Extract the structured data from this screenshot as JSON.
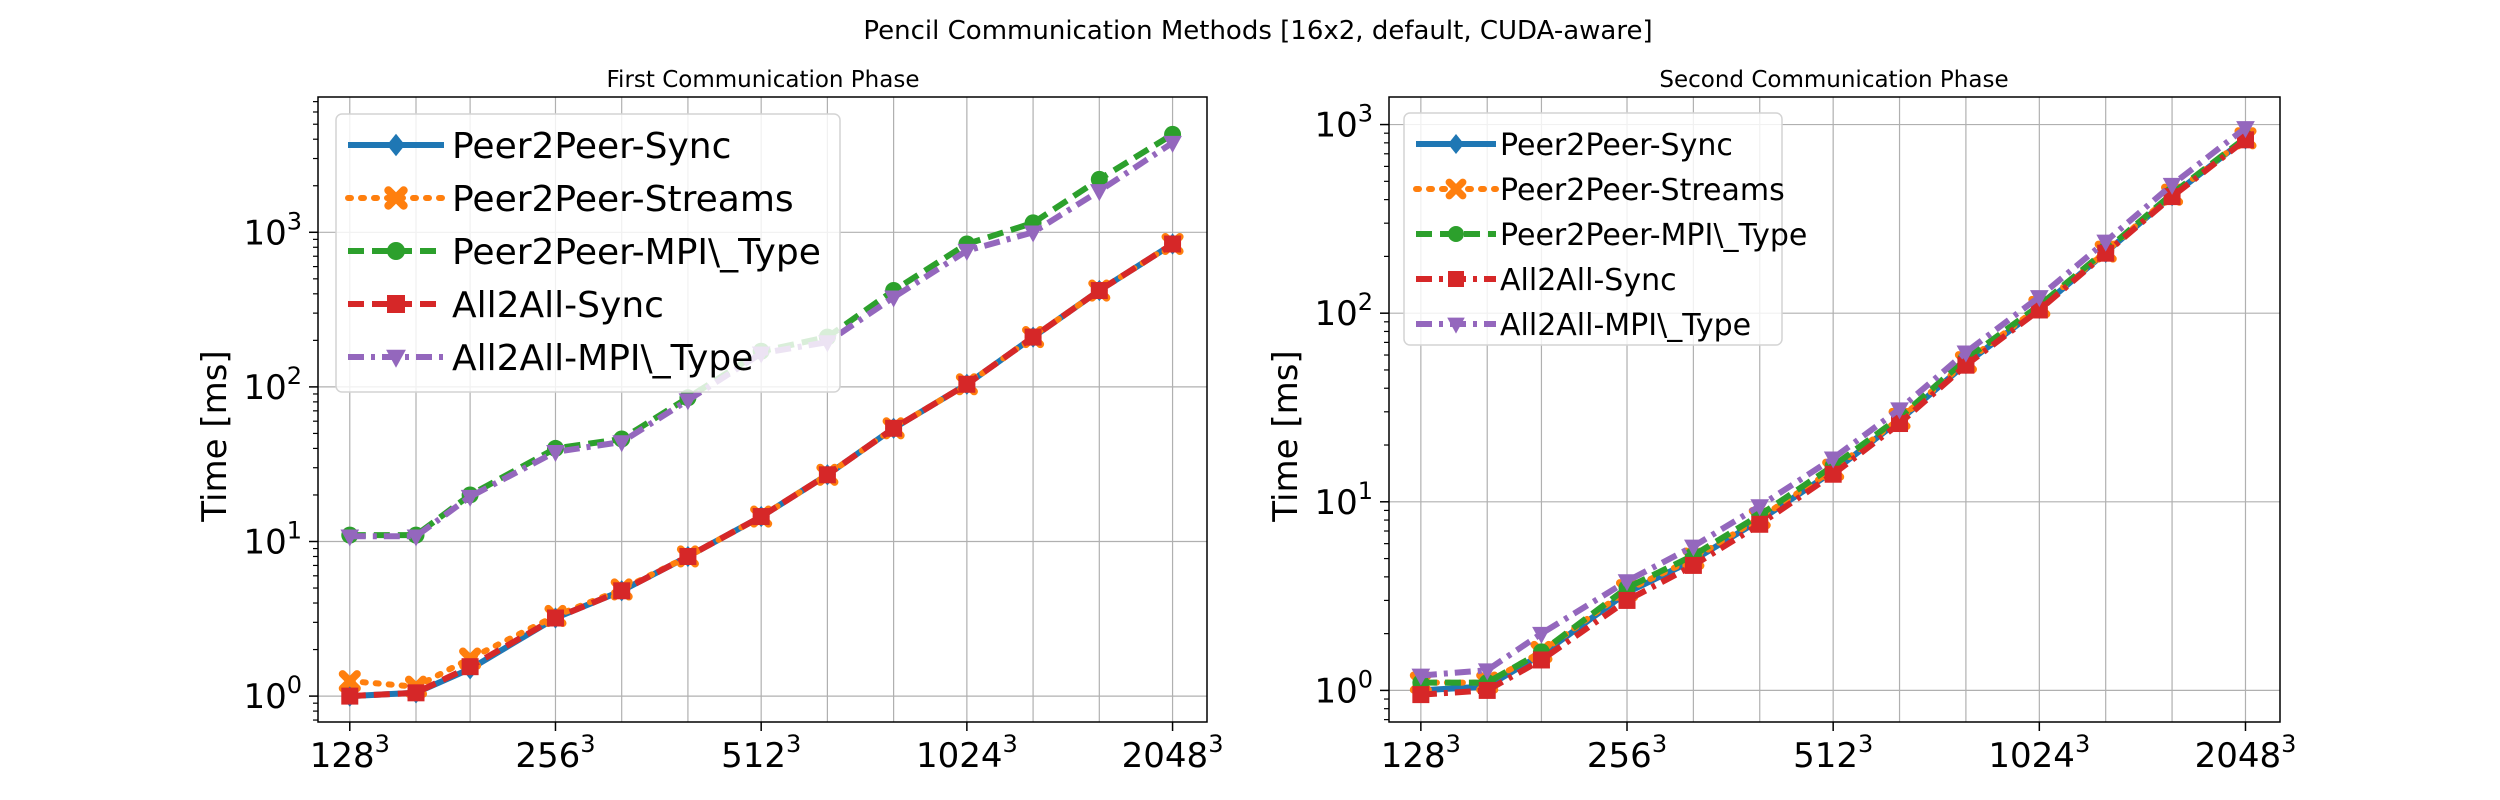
{
  "figure": {
    "title": "Pencil Communication Methods [16x2, default, CUDA-aware]"
  },
  "chart_data": [
    {
      "type": "line",
      "title": "First Communication Phase",
      "xlabel": "",
      "ylabel": "Time [ms]",
      "xscale": "log2",
      "yscale": "log",
      "xticks": [
        {
          "value": 128,
          "label": "128",
          "exp": "3"
        },
        {
          "value": 256,
          "label": "256",
          "exp": "3"
        },
        {
          "value": 512,
          "label": "512",
          "exp": "3"
        },
        {
          "value": 1024,
          "label": "1024",
          "exp": "3"
        },
        {
          "value": 2048,
          "label": "2048",
          "exp": "3"
        }
      ],
      "yticks": [
        {
          "value": 1,
          "label": "10",
          "exp": "0"
        },
        {
          "value": 10,
          "label": "10",
          "exp": "1"
        },
        {
          "value": 100,
          "label": "10",
          "exp": "2"
        },
        {
          "value": 1000,
          "label": "10",
          "exp": "3"
        }
      ],
      "xlim": [
        115,
        2300
      ],
      "ylim": [
        0.68,
        7500
      ],
      "grid": true,
      "legend_position": "top-left",
      "x": [
        128,
        160,
        192,
        256,
        320,
        400,
        512,
        640,
        800,
        1024,
        1280,
        1600,
        2048
      ],
      "series": [
        {
          "name": "Peer2Peer-Sync",
          "color": "#1f77b4",
          "marker": "diamond",
          "dash": "solid",
          "values": [
            1.0,
            1.05,
            1.5,
            3.2,
            4.8,
            8.0,
            14.5,
            27,
            54,
            104,
            210,
            420,
            840
          ]
        },
        {
          "name": "Peer2Peer-Streams",
          "color": "#ff7f0e",
          "marker": "x",
          "dash": "dotted",
          "values": [
            1.25,
            1.15,
            1.75,
            3.3,
            4.9,
            8.0,
            14.5,
            27,
            54,
            104,
            210,
            420,
            840
          ]
        },
        {
          "name": "Peer2Peer-MPI\\_Type",
          "color": "#2ca02c",
          "marker": "circle",
          "dash": "dashed",
          "values": [
            11,
            11,
            20,
            40,
            46,
            85,
            170,
            210,
            420,
            840,
            1150,
            2200,
            4300
          ]
        },
        {
          "name": "All2All-Sync",
          "color": "#d62728",
          "marker": "square",
          "dash": "dashed",
          "values": [
            1.0,
            1.05,
            1.55,
            3.2,
            4.8,
            8.0,
            14.5,
            27,
            54,
            104,
            210,
            420,
            840
          ]
        },
        {
          "name": "All2All-MPI\\_Type",
          "color": "#9467bd",
          "marker": "triangle-down",
          "dash": "dashdot",
          "values": [
            10.8,
            10.8,
            19.5,
            38,
            44,
            82,
            165,
            195,
            380,
            760,
            1000,
            1850,
            3800
          ]
        }
      ]
    },
    {
      "type": "line",
      "title": "Second Communication Phase",
      "xlabel": "",
      "ylabel": "Time [ms]",
      "xscale": "log2",
      "yscale": "log",
      "xticks": [
        {
          "value": 128,
          "label": "128",
          "exp": "3"
        },
        {
          "value": 256,
          "label": "256",
          "exp": "3"
        },
        {
          "value": 512,
          "label": "512",
          "exp": "3"
        },
        {
          "value": 1024,
          "label": "1024",
          "exp": "3"
        },
        {
          "value": 2048,
          "label": "2048",
          "exp": "3"
        }
      ],
      "yticks": [
        {
          "value": 1,
          "label": "10",
          "exp": "0"
        },
        {
          "value": 10,
          "label": "10",
          "exp": "1"
        },
        {
          "value": 100,
          "label": "10",
          "exp": "2"
        },
        {
          "value": 1000,
          "label": "10",
          "exp": "3"
        }
      ],
      "xlim": [
        115,
        2300
      ],
      "ylim": [
        0.68,
        1400
      ],
      "grid": true,
      "legend_position": "top-left",
      "x": [
        128,
        160,
        192,
        256,
        320,
        400,
        512,
        640,
        800,
        1024,
        1280,
        1600,
        2048
      ],
      "series": [
        {
          "name": "Peer2Peer-Sync",
          "color": "#1f77b4",
          "marker": "diamond",
          "dash": "solid",
          "values": [
            1.0,
            1.05,
            1.55,
            3.3,
            4.9,
            8.0,
            14.5,
            27,
            54,
            106,
            210,
            420,
            840
          ]
        },
        {
          "name": "Peer2Peer-Streams",
          "color": "#ff7f0e",
          "marker": "x",
          "dash": "dotted",
          "values": [
            1.1,
            1.1,
            1.6,
            3.4,
            5.0,
            8.2,
            14.8,
            27.5,
            55,
            108,
            212,
            425,
            845
          ]
        },
        {
          "name": "Peer2Peer-MPI\\_Type",
          "color": "#2ca02c",
          "marker": "circle",
          "dash": "dashed",
          "values": [
            1.1,
            1.1,
            1.6,
            3.5,
            5.2,
            8.5,
            15.5,
            28,
            57,
            110,
            215,
            430,
            850
          ]
        },
        {
          "name": "All2All-Sync",
          "color": "#d62728",
          "marker": "square",
          "dash": "dashdot",
          "values": [
            0.95,
            1.0,
            1.45,
            3.0,
            4.6,
            7.6,
            14,
            26,
            53,
            104,
            208,
            415,
            830
          ]
        },
        {
          "name": "All2All-MPI\\_Type",
          "color": "#9467bd",
          "marker": "triangle-down",
          "dash": "dashdot",
          "values": [
            1.2,
            1.28,
            2.0,
            3.8,
            5.8,
            9.5,
            17,
            31,
            62,
            122,
            240,
            480,
            960
          ]
        }
      ]
    }
  ]
}
